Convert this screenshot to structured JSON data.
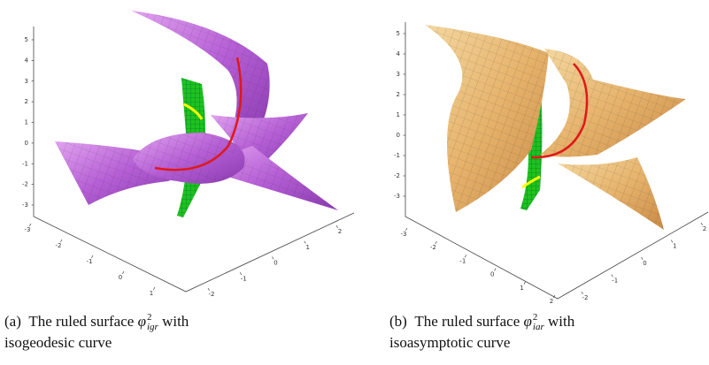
{
  "figure": {
    "panels": [
      {
        "z_ticks": [
          5,
          4,
          3,
          2,
          1,
          0,
          -1,
          -2,
          -3
        ],
        "x_ticks": [
          -3,
          -2,
          -1,
          0,
          1
        ],
        "y_ticks": [
          2,
          1,
          0,
          -1,
          -2
        ],
        "caption": {
          "label": "(a)",
          "text": "The ruled surface",
          "symbol": "φ",
          "sup": "2",
          "sub": "igr",
          "after": "with",
          "line2": "isogeodesic curve"
        }
      },
      {
        "z_ticks": [
          5,
          4,
          3,
          2,
          1,
          0,
          -1,
          -2,
          -3
        ],
        "x_ticks": [
          -3,
          -2,
          -1,
          0,
          1,
          2
        ],
        "y_ticks": [
          2,
          1,
          0,
          -1,
          -2
        ],
        "caption": {
          "label": "(b)",
          "text": "The ruled surface",
          "symbol": "φ",
          "sup": "2",
          "sub": "iar",
          "after": "with",
          "line2": "isoasymptotic curve"
        }
      }
    ]
  }
}
